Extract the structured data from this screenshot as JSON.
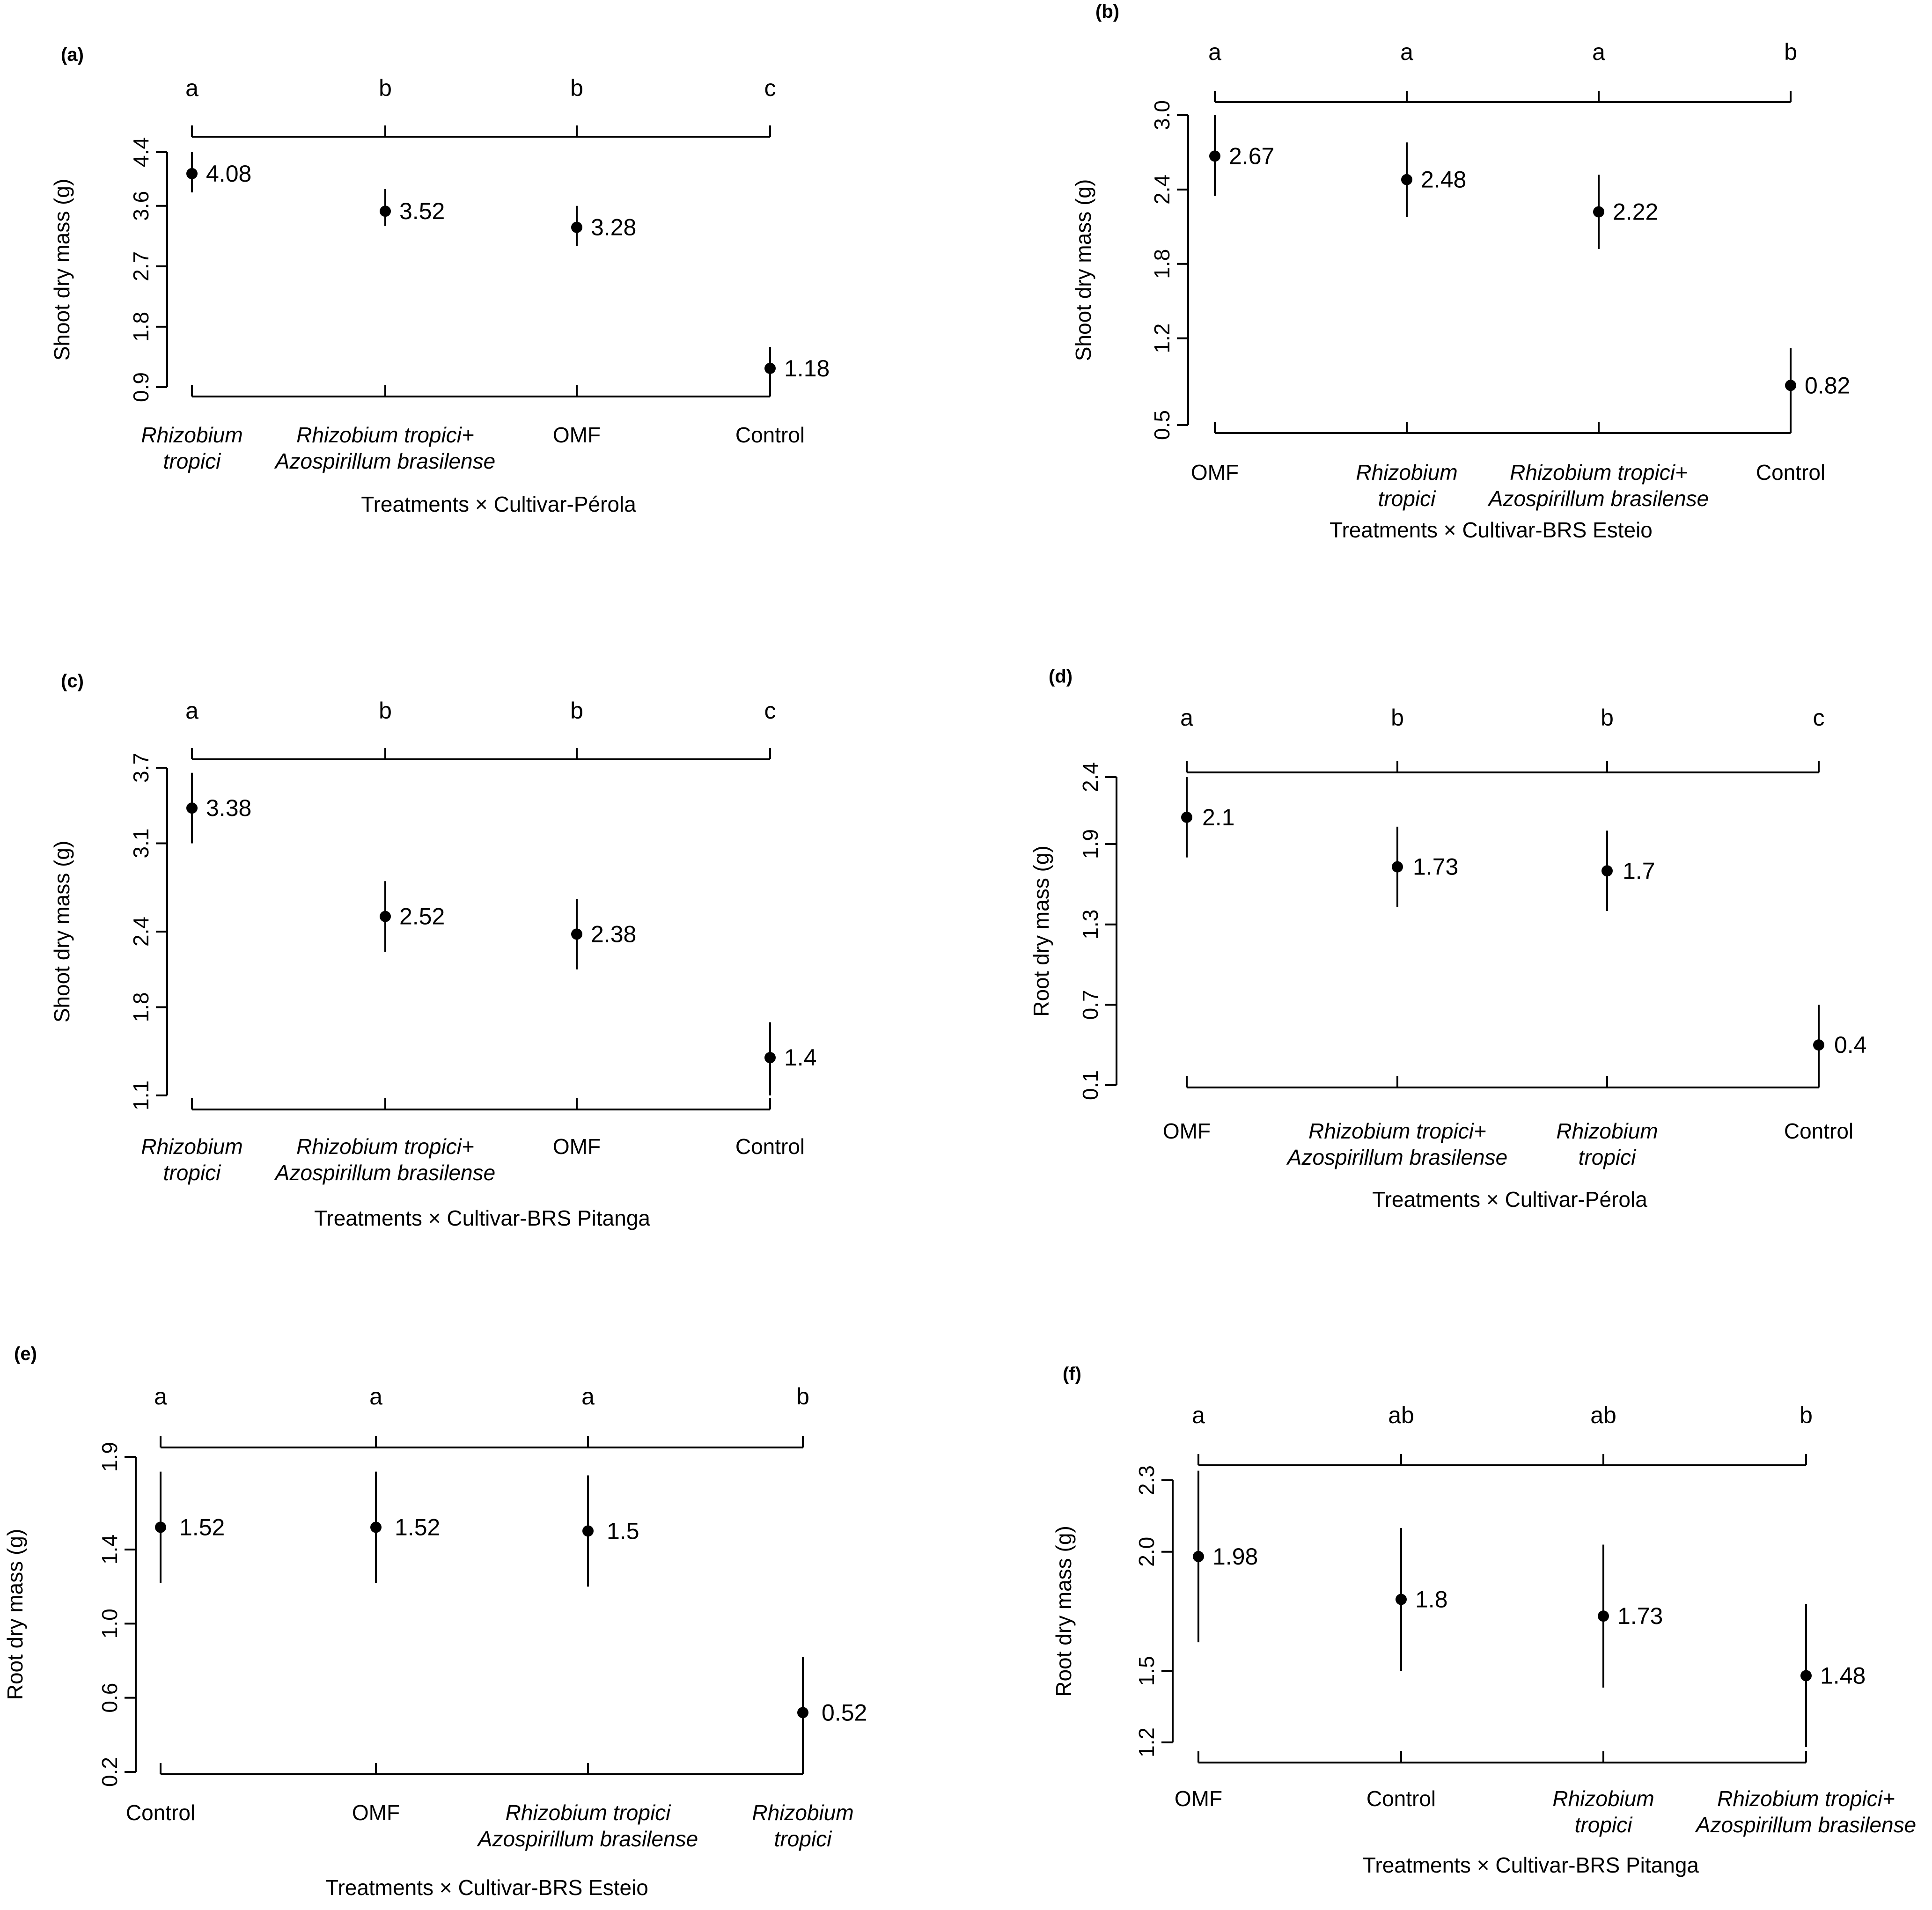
{
  "chart_data": [
    {
      "panel": "(a)",
      "type": "scatter",
      "ylabel": "Shoot dry mass (g)",
      "xlabel": "Treatments × Cultivar-Pérola",
      "ylim": [
        0.9,
        4.4
      ],
      "yticks": [
        "0.9",
        "1.8",
        "2.7",
        "3.6",
        "4.4"
      ],
      "categories": [
        {
          "lines": [
            "Rhizobium",
            "tropici"
          ],
          "italic": true
        },
        {
          "lines": [
            "Rhizobium tropici+",
            "Azospirillum brasilense"
          ],
          "italic": true
        },
        {
          "lines": [
            "OMF"
          ],
          "italic": false
        },
        {
          "lines": [
            "Control"
          ],
          "italic": false
        }
      ],
      "letters": [
        "a",
        "b",
        "b",
        "c"
      ],
      "values": [
        4.08,
        3.52,
        3.28,
        1.18
      ],
      "value_labels": [
        "4.08",
        "3.52",
        "3.28",
        "1.18"
      ],
      "error_low": [
        3.8,
        3.3,
        3.0,
        0.9
      ],
      "error_high": [
        4.4,
        3.85,
        3.6,
        1.5
      ]
    },
    {
      "panel": "(b)",
      "type": "scatter",
      "ylabel": "Shoot dry mass (g)",
      "xlabel": "Treatments × Cultivar-BRS Esteio",
      "ylim": [
        0.5,
        3.0
      ],
      "yticks": [
        "0.5",
        "1.2",
        "1.8",
        "2.4",
        "3.0"
      ],
      "categories": [
        {
          "lines": [
            "OMF"
          ],
          "italic": false
        },
        {
          "lines": [
            "Rhizobium",
            "tropici"
          ],
          "italic": true
        },
        {
          "lines": [
            "Rhizobium tropici+",
            "Azospirillum brasilense"
          ],
          "italic": true
        },
        {
          "lines": [
            "Control"
          ],
          "italic": false
        }
      ],
      "letters": [
        "a",
        "a",
        "a",
        "b"
      ],
      "values": [
        2.67,
        2.48,
        2.22,
        0.82
      ],
      "value_labels": [
        "2.67",
        "2.48",
        "2.22",
        "0.82"
      ],
      "error_low": [
        2.35,
        2.18,
        1.92,
        0.52
      ],
      "error_high": [
        3.0,
        2.78,
        2.52,
        1.12
      ]
    },
    {
      "panel": "(c)",
      "type": "scatter",
      "ylabel": "Shoot dry mass (g)",
      "xlabel": "Treatments × Cultivar-BRS Pitanga",
      "ylim": [
        1.1,
        3.7
      ],
      "yticks": [
        "1.1",
        "1.8",
        "2.4",
        "3.1",
        "3.7"
      ],
      "categories": [
        {
          "lines": [
            "Rhizobium",
            "tropici"
          ],
          "italic": true
        },
        {
          "lines": [
            "Rhizobium tropici+",
            "Azospirillum brasilense"
          ],
          "italic": true
        },
        {
          "lines": [
            "OMF"
          ],
          "italic": false
        },
        {
          "lines": [
            "Control"
          ],
          "italic": false
        }
      ],
      "letters": [
        "a",
        "b",
        "b",
        "c"
      ],
      "values": [
        3.38,
        2.52,
        2.38,
        1.4
      ],
      "value_labels": [
        "3.38",
        "2.52",
        "2.38",
        "1.4"
      ],
      "error_low": [
        3.1,
        2.24,
        2.1,
        1.1
      ],
      "error_high": [
        3.66,
        2.8,
        2.66,
        1.68
      ]
    },
    {
      "panel": "(d)",
      "type": "scatter",
      "ylabel": "Root dry mass (g)",
      "xlabel": "Treatments × Cultivar-Pérola",
      "ylim": [
        0.1,
        2.4
      ],
      "yticks": [
        "0.1",
        "0.7",
        "1.3",
        "1.9",
        "2.4"
      ],
      "categories": [
        {
          "lines": [
            "OMF"
          ],
          "italic": false
        },
        {
          "lines": [
            "Rhizobium tropici+",
            "Azospirillum brasilense"
          ],
          "italic": true
        },
        {
          "lines": [
            "Rhizobium",
            "tropici"
          ],
          "italic": true
        },
        {
          "lines": [
            "Control"
          ],
          "italic": false
        }
      ],
      "letters": [
        "a",
        "b",
        "b",
        "c"
      ],
      "values": [
        2.1,
        1.73,
        1.7,
        0.4
      ],
      "value_labels": [
        "2.1",
        "1.73",
        "1.7",
        "0.4"
      ],
      "error_low": [
        1.8,
        1.43,
        1.4,
        0.1
      ],
      "error_high": [
        2.4,
        2.03,
        2.0,
        0.7
      ]
    },
    {
      "panel": "(e)",
      "type": "scatter",
      "ylabel": "Root dry mass (g)",
      "xlabel": "Treatments × Cultivar-BRS Esteio",
      "ylim": [
        0.2,
        1.9
      ],
      "yticks": [
        "0.2",
        "0.6",
        "1.0",
        "1.4",
        "1.9"
      ],
      "categories": [
        {
          "lines": [
            "Control"
          ],
          "italic": false
        },
        {
          "lines": [
            "OMF"
          ],
          "italic": false
        },
        {
          "lines": [
            "Rhizobium tropici",
            "Azospirillum brasilense"
          ],
          "italic": true
        },
        {
          "lines": [
            "Rhizobium",
            "tropici"
          ],
          "italic": true
        }
      ],
      "letters": [
        "a",
        "a",
        "a",
        "b"
      ],
      "values": [
        1.52,
        1.52,
        1.5,
        0.52
      ],
      "value_labels": [
        "1.52",
        "1.52",
        "1.5",
        "0.52"
      ],
      "error_low": [
        1.22,
        1.22,
        1.2,
        0.22
      ],
      "error_high": [
        1.82,
        1.82,
        1.8,
        0.82
      ]
    },
    {
      "panel": "(f)",
      "type": "scatter",
      "ylabel": "Root dry mass (g)",
      "xlabel": "Treatments × Cultivar-BRS Pitanga",
      "ylim": [
        1.2,
        2.3
      ],
      "yticks": [
        "1.2",
        "1.5",
        "2.0",
        "2.3"
      ],
      "ytick_values": [
        1.2,
        1.5,
        2.0,
        2.3
      ],
      "categories": [
        {
          "lines": [
            "OMF"
          ],
          "italic": false
        },
        {
          "lines": [
            "Control"
          ],
          "italic": false
        },
        {
          "lines": [
            "Rhizobium",
            "tropici"
          ],
          "italic": true
        },
        {
          "lines": [
            "Rhizobium tropici+",
            "Azospirillum brasilense"
          ],
          "italic": true
        }
      ],
      "letters": [
        "a",
        "ab",
        "ab",
        "b"
      ],
      "values": [
        1.98,
        1.8,
        1.73,
        1.48
      ],
      "value_labels": [
        "1.98",
        "1.8",
        "1.73",
        "1.48"
      ],
      "error_low": [
        1.62,
        1.5,
        1.43,
        1.18
      ],
      "error_high": [
        2.34,
        2.1,
        2.03,
        1.78
      ]
    }
  ]
}
